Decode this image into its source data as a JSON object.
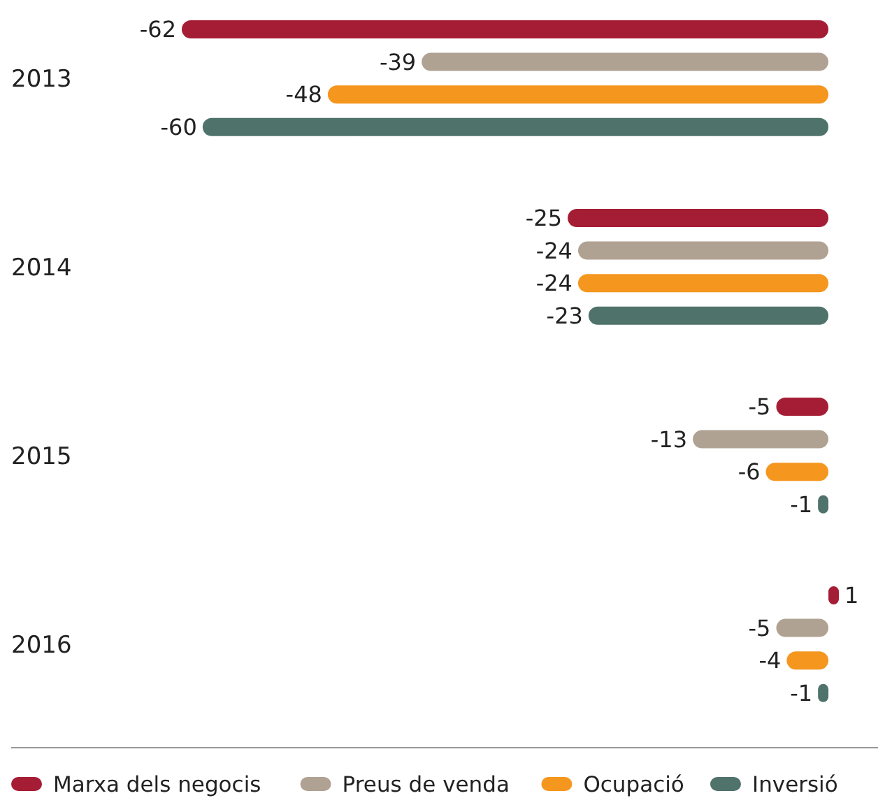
{
  "chart_data": {
    "type": "bar",
    "orientation": "horizontal",
    "categories": [
      "2013",
      "2014",
      "2015",
      "2016"
    ],
    "series": [
      {
        "name": "Marxa dels negocis",
        "color": "#a51d35",
        "values": [
          -62,
          -25,
          -5,
          1
        ]
      },
      {
        "name": "Preus de venda",
        "color": "#b0a292",
        "values": [
          -39,
          -24,
          -13,
          -5
        ]
      },
      {
        "name": "Ocupació",
        "color": "#f5961e",
        "values": [
          -48,
          -24,
          -6,
          -4
        ]
      },
      {
        "name": "Inversió",
        "color": "#4f736b",
        "values": [
          -60,
          -23,
          -1,
          -1
        ]
      }
    ],
    "data_labels": true,
    "legend": "bottom"
  }
}
